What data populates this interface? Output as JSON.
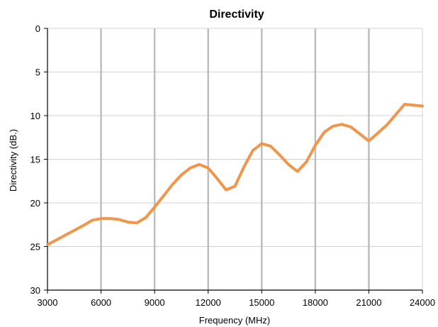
{
  "chart_data": {
    "type": "line",
    "title": "Directivity",
    "xlabel": "Frequency (MHz)",
    "ylabel": "Directivity (dB.)",
    "xlim": [
      3000,
      24000
    ],
    "ylim": [
      0,
      30
    ],
    "y_inverted": true,
    "xticks": [
      "3000",
      "6000",
      "9000",
      "12000",
      "15000",
      "18000",
      "21000",
      "24000"
    ],
    "yticks": [
      "0",
      "5",
      "10",
      "15",
      "20",
      "25",
      "30"
    ],
    "grid": {
      "x": true,
      "y": true
    },
    "legend": "none",
    "series": [
      {
        "color": "#F0954A",
        "x": [
          3000,
          4000,
          5000,
          5500,
          6000,
          6500,
          7000,
          7500,
          8000,
          8500,
          9000,
          9500,
          10000,
          10500,
          11000,
          11500,
          12000,
          12500,
          13000,
          13500,
          14000,
          14500,
          15000,
          15500,
          16000,
          16500,
          17000,
          17500,
          18000,
          18500,
          19000,
          19500,
          20000,
          20500,
          21000,
          22000,
          23000,
          24000
        ],
        "y": [
          24.8,
          23.7,
          22.6,
          22.0,
          21.8,
          21.8,
          21.9,
          22.2,
          22.3,
          21.7,
          20.5,
          19.2,
          17.9,
          16.8,
          16.0,
          15.6,
          16.0,
          17.2,
          18.5,
          18.1,
          15.9,
          14.0,
          13.2,
          13.5,
          14.5,
          15.6,
          16.4,
          15.3,
          13.4,
          11.9,
          11.2,
          11.0,
          11.3,
          12.1,
          12.9,
          11.1,
          8.7,
          8.9
        ]
      }
    ]
  }
}
